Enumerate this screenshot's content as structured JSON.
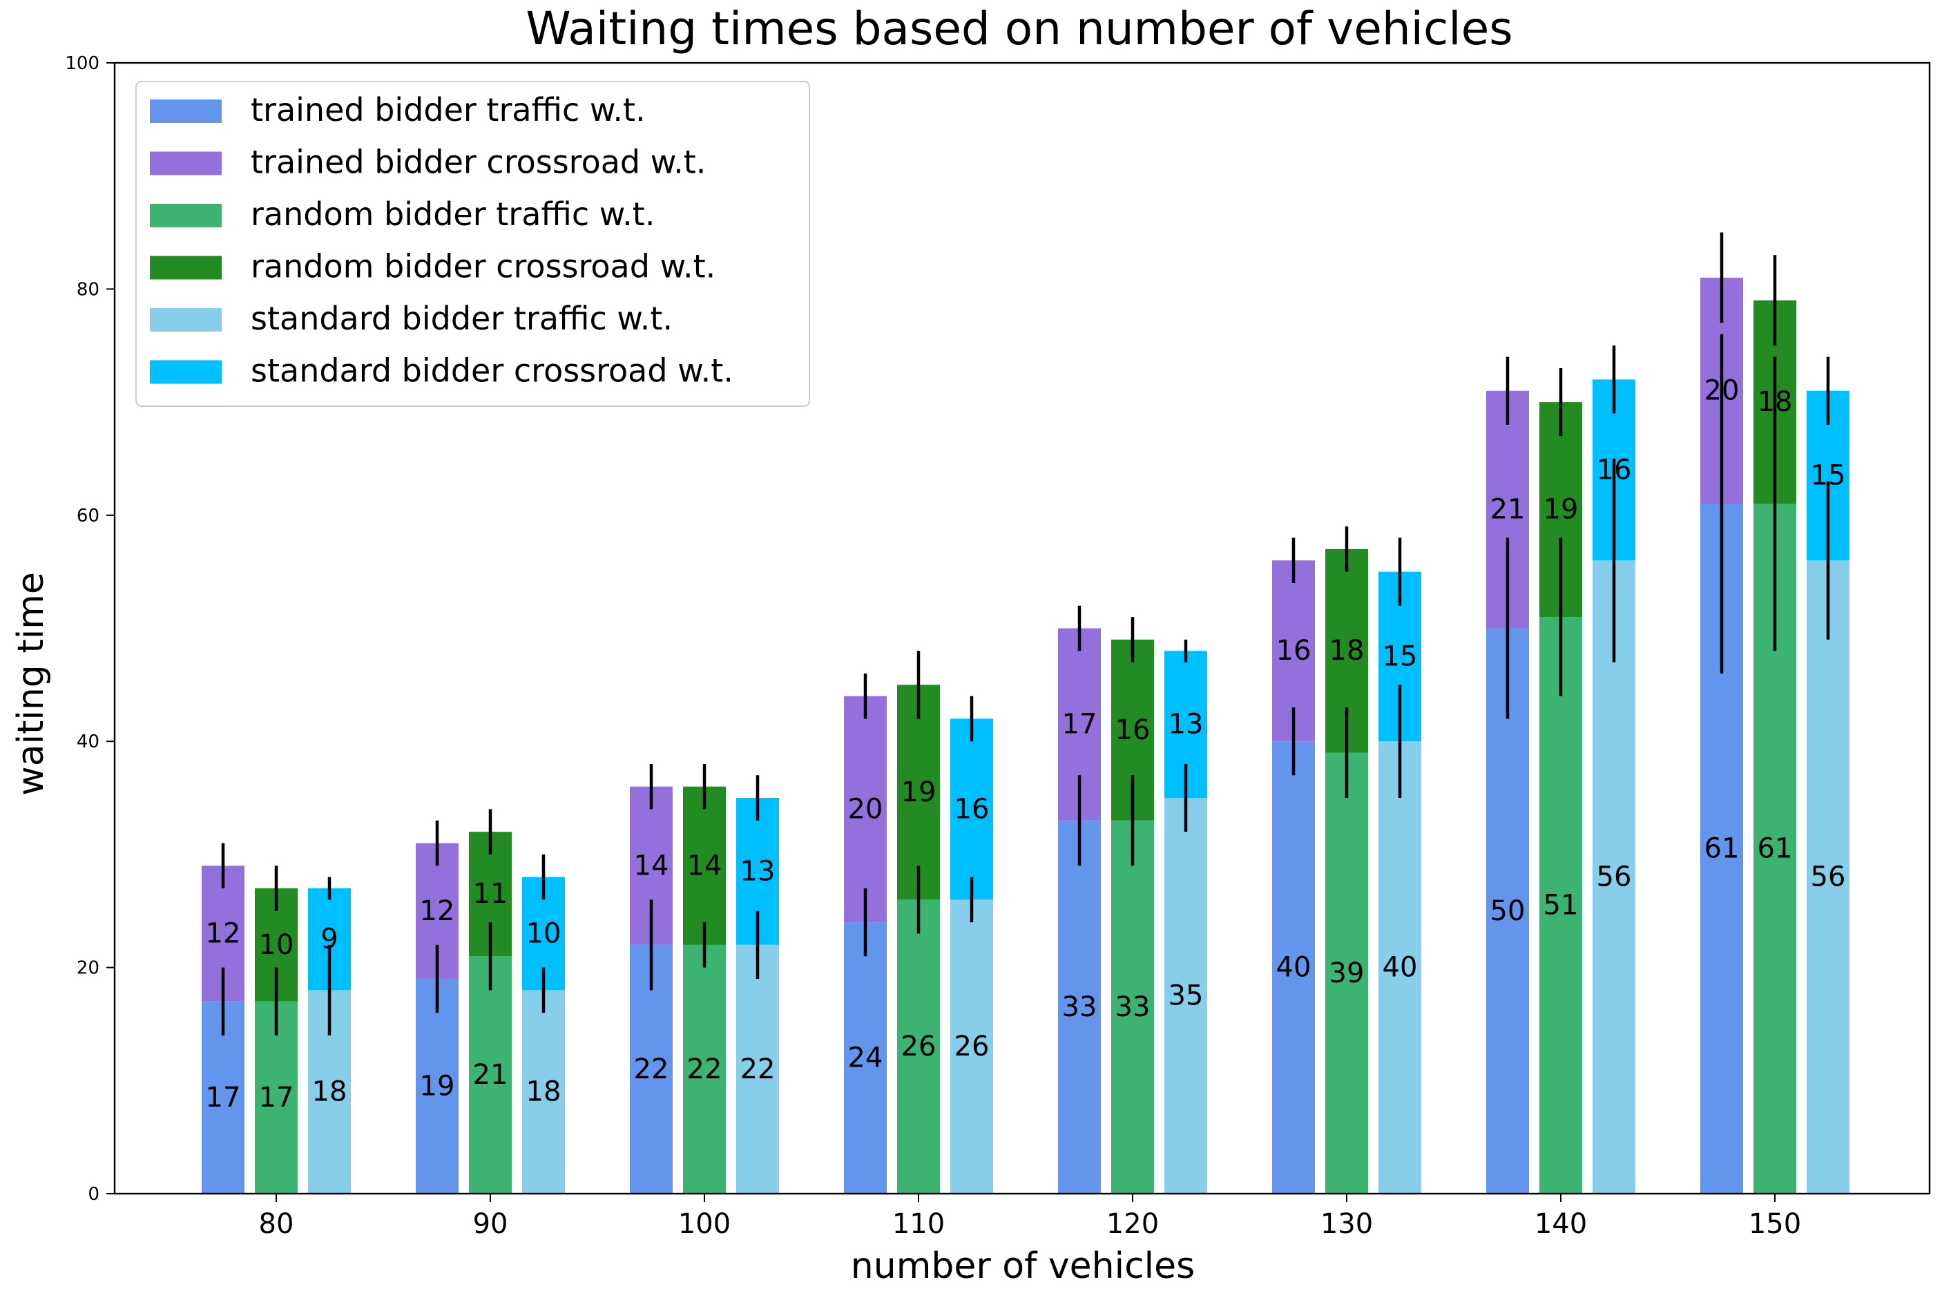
{
  "chart_data": {
    "type": "bar",
    "stacked": true,
    "title": "Waiting times based on number of vehicles",
    "xlabel": "number of vehicles",
    "ylabel": "waiting time",
    "ylim": [
      0,
      100
    ],
    "yticks": [
      0,
      20,
      40,
      60,
      80,
      100
    ],
    "categories": [
      "80",
      "90",
      "100",
      "110",
      "120",
      "130",
      "140",
      "150"
    ],
    "legend_position": "top-left",
    "groups": [
      {
        "name": "trained bidder",
        "traffic": {
          "name": "trained bidder traffic w.t.",
          "color": "#6495ED",
          "values": [
            17,
            19,
            22,
            24,
            33,
            40,
            50,
            61
          ],
          "error_low": [
            14,
            16,
            18,
            21,
            29,
            37,
            42,
            46
          ],
          "error_high": [
            20,
            22,
            26,
            27,
            37,
            43,
            58,
            76
          ]
        },
        "crossroad": {
          "name": "trained bidder crossroad w.t.",
          "color": "#9370DB",
          "values": [
            12,
            12,
            14,
            20,
            17,
            16,
            21,
            20
          ],
          "error_low": [
            27,
            29,
            34,
            42,
            48,
            54,
            68,
            77
          ],
          "error_high": [
            31,
            33,
            38,
            46,
            52,
            58,
            74,
            85
          ]
        }
      },
      {
        "name": "random bidder",
        "traffic": {
          "name": "random bidder traffic w.t.",
          "color": "#3CB371",
          "values": [
            17,
            21,
            22,
            26,
            33,
            39,
            51,
            61
          ],
          "error_low": [
            14,
            18,
            20,
            23,
            29,
            35,
            44,
            48
          ],
          "error_high": [
            20,
            24,
            24,
            29,
            37,
            43,
            58,
            74
          ]
        },
        "crossroad": {
          "name": "random bidder crossroad w.t.",
          "color": "#228B22",
          "values": [
            10,
            11,
            14,
            19,
            16,
            18,
            19,
            18
          ],
          "error_low": [
            25,
            30,
            34,
            42,
            47,
            55,
            67,
            75
          ],
          "error_high": [
            29,
            34,
            38,
            48,
            51,
            59,
            73,
            83
          ]
        }
      },
      {
        "name": "standard bidder",
        "traffic": {
          "name": "standard bidder traffic w.t.",
          "color": "#87CEEB",
          "values": [
            18,
            18,
            22,
            26,
            35,
            40,
            56,
            56
          ],
          "error_low": [
            14,
            16,
            19,
            24,
            32,
            35,
            47,
            49
          ],
          "error_high": [
            22,
            20,
            25,
            28,
            38,
            45,
            65,
            63
          ]
        },
        "crossroad": {
          "name": "standard bidder crossroad w.t.",
          "color": "#00BFFF",
          "values": [
            9,
            10,
            13,
            16,
            13,
            15,
            16,
            15
          ],
          "error_low": [
            26,
            26,
            33,
            40,
            47,
            52,
            69,
            68
          ],
          "error_high": [
            28,
            30,
            37,
            44,
            49,
            58,
            75,
            74
          ]
        }
      }
    ]
  }
}
